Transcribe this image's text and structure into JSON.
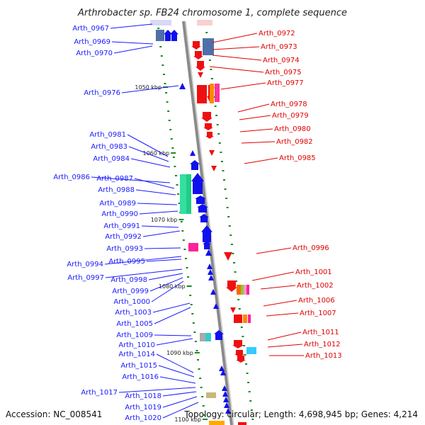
{
  "title": "Arthrobacter sp. FB24 chromosome 1, complete sequence",
  "footer": {
    "accession": "Accession: NC_008541",
    "topology": "Topology: circular; Length: 4,698,945 bp; Genes: 4,214"
  },
  "colors": {
    "forward": "#1010ee",
    "reverse": "#ee1010",
    "backbone": "#888888",
    "tick": "#1a8a1a"
  },
  "scale_labels": [
    "1050 kbp",
    "1060 kbp",
    "1070 kbp",
    "1080 kbp",
    "1090 kbp",
    "1100 kbp"
  ],
  "left_labels": [
    "Arth_0967",
    "Arth_0969",
    "Arth_0970",
    "Arth_0976",
    "Arth_0981",
    "Arth_0983",
    "Arth_0984",
    "Arth_0986",
    "Arth_0987",
    "Arth_0988",
    "Arth_0989",
    "Arth_0990",
    "Arth_0991",
    "Arth_0992",
    "Arth_0993",
    "Arth_0994",
    "Arth_0995",
    "Arth_0997",
    "Arth_0998",
    "Arth_0999",
    "Arth_1000",
    "Arth_1003",
    "Arth_1005",
    "Arth_1009",
    "Arth_1010",
    "Arth_1014",
    "Arth_1015",
    "Arth_1016",
    "Arth_1017",
    "Arth_1018",
    "Arth_1019",
    "Arth_1020"
  ],
  "right_labels": [
    "Arth_0972",
    "Arth_0973",
    "Arth_0974",
    "Arth_0975",
    "Arth_0977",
    "Arth_0978",
    "Arth_0979",
    "Arth_0980",
    "Arth_0982",
    "Arth_0985",
    "Arth_0996",
    "Arth_1001",
    "Arth_1002",
    "Arth_1006",
    "Arth_1007",
    "Arth_1011",
    "Arth_1012",
    "Arth_1013"
  ]
}
